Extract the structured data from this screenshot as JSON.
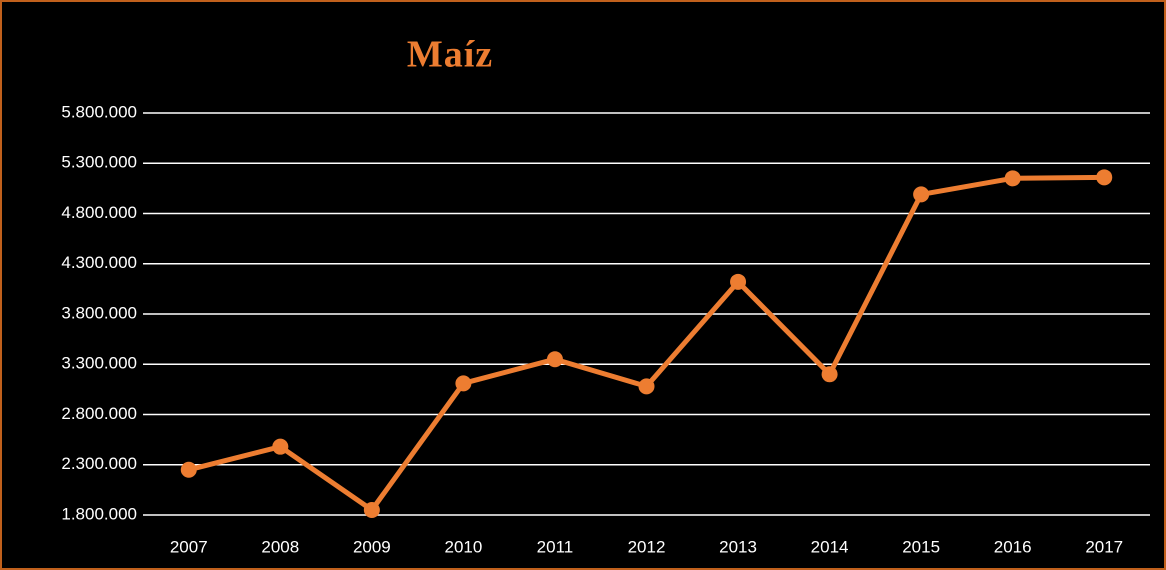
{
  "chart_data": {
    "type": "line",
    "title": "Maíz",
    "categories": [
      "2007",
      "2008",
      "2009",
      "2010",
      "2011",
      "2012",
      "2013",
      "2014",
      "2015",
      "2016",
      "2017"
    ],
    "series": [
      {
        "name": "Maíz",
        "color": "#ed7d31",
        "values": [
          2250000,
          2480000,
          1850000,
          3110000,
          3350000,
          3080000,
          4120000,
          3200000,
          4990000,
          5150000,
          5160000
        ]
      }
    ],
    "ylim": [
      1800000,
      5800000
    ],
    "yticks": [
      {
        "value": 1800000,
        "label": "1.800.000"
      },
      {
        "value": 2300000,
        "label": "2.300.000"
      },
      {
        "value": 2800000,
        "label": "2.800.000"
      },
      {
        "value": 3300000,
        "label": "3.300.000"
      },
      {
        "value": 3800000,
        "label": "3.800.000"
      },
      {
        "value": 4300000,
        "label": "4.300.000"
      },
      {
        "value": 4800000,
        "label": "4.800.000"
      },
      {
        "value": 5300000,
        "label": "5.300.000"
      },
      {
        "value": 5800000,
        "label": "5.800.000"
      }
    ],
    "grid": true
  }
}
